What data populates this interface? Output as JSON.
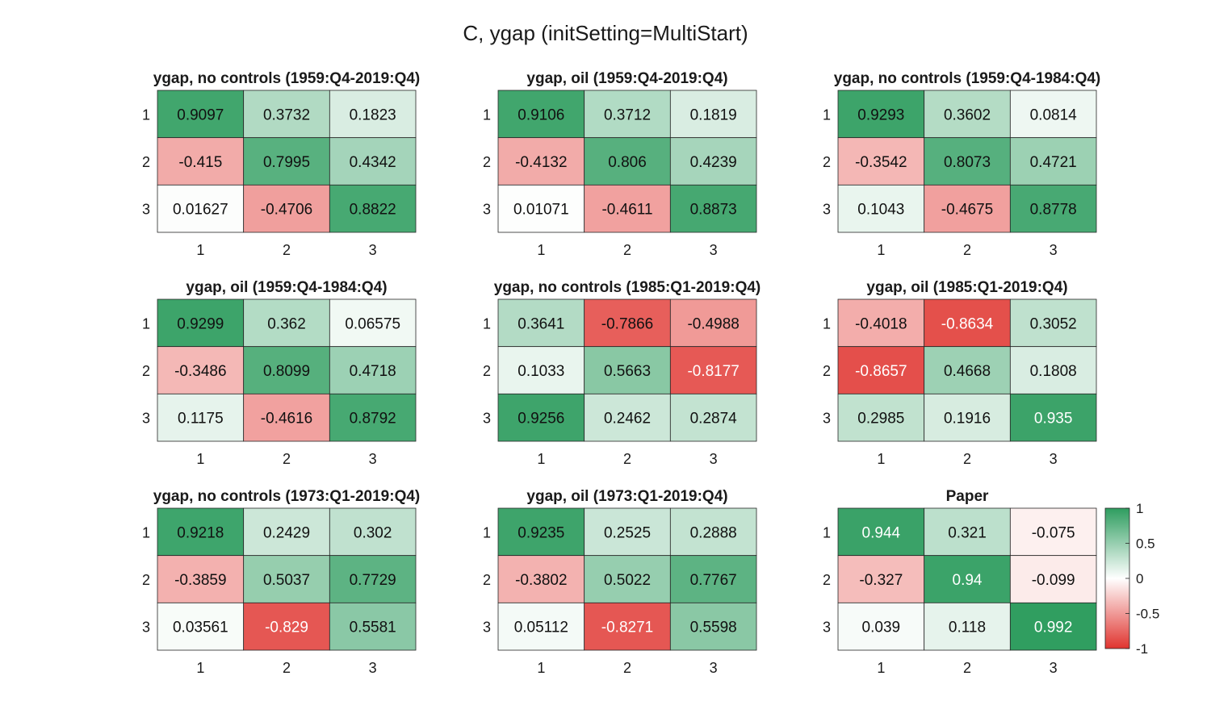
{
  "title": "C, ygap (initSetting=MultiStart)",
  "colors": {
    "positive": "#2e9d5f",
    "negative": "#e0342f",
    "neutral": "#ffffff",
    "cell_border": "#262626",
    "text_dark": "#111111",
    "text_light": "#ffffff"
  },
  "colorbar": {
    "ticks": [
      "1",
      "0.5",
      "0",
      "-0.5",
      "-1"
    ],
    "tick_values": [
      1,
      0.5,
      0,
      -0.5,
      -1
    ],
    "range": [
      -1,
      1
    ]
  },
  "chart_data": [
    {
      "type": "heatmap",
      "title": "ygap, no controls (1959:Q4-2019:Q4)",
      "row_labels": [
        "1",
        "2",
        "3"
      ],
      "col_labels": [
        "1",
        "2",
        "3"
      ],
      "values": [
        [
          0.9097,
          0.3732,
          0.1823
        ],
        [
          -0.415,
          0.7995,
          0.4342
        ],
        [
          0.01627,
          -0.4706,
          0.8822
        ]
      ],
      "labels": [
        [
          "0.9097",
          "0.3732",
          "0.1823"
        ],
        [
          "-0.415",
          "0.7995",
          "0.4342"
        ],
        [
          "0.01627",
          "-0.4706",
          "0.8822"
        ]
      ],
      "clim": [
        -1,
        1
      ]
    },
    {
      "type": "heatmap",
      "title": "ygap, oil (1959:Q4-2019:Q4)",
      "row_labels": [
        "1",
        "2",
        "3"
      ],
      "col_labels": [
        "1",
        "2",
        "3"
      ],
      "values": [
        [
          0.9106,
          0.3712,
          0.1819
        ],
        [
          -0.4132,
          0.806,
          0.4239
        ],
        [
          0.01071,
          -0.4611,
          0.8873
        ]
      ],
      "labels": [
        [
          "0.9106",
          "0.3712",
          "0.1819"
        ],
        [
          "-0.4132",
          "0.806",
          "0.4239"
        ],
        [
          "0.01071",
          "-0.4611",
          "0.8873"
        ]
      ],
      "clim": [
        -1,
        1
      ]
    },
    {
      "type": "heatmap",
      "title": "ygap, no controls (1959:Q4-1984:Q4)",
      "row_labels": [
        "1",
        "2",
        "3"
      ],
      "col_labels": [
        "1",
        "2",
        "3"
      ],
      "values": [
        [
          0.9293,
          0.3602,
          0.0814
        ],
        [
          -0.3542,
          0.8073,
          0.4721
        ],
        [
          0.1043,
          -0.4675,
          0.8778
        ]
      ],
      "labels": [
        [
          "0.9293",
          "0.3602",
          "0.0814"
        ],
        [
          "-0.3542",
          "0.8073",
          "0.4721"
        ],
        [
          "0.1043",
          "-0.4675",
          "0.8778"
        ]
      ],
      "clim": [
        -1,
        1
      ]
    },
    {
      "type": "heatmap",
      "title": "ygap, oil (1959:Q4-1984:Q4)",
      "row_labels": [
        "1",
        "2",
        "3"
      ],
      "col_labels": [
        "1",
        "2",
        "3"
      ],
      "values": [
        [
          0.9299,
          0.362,
          0.06575
        ],
        [
          -0.3486,
          0.8099,
          0.4718
        ],
        [
          0.1175,
          -0.4616,
          0.8792
        ]
      ],
      "labels": [
        [
          "0.9299",
          "0.362",
          "0.06575"
        ],
        [
          "-0.3486",
          "0.8099",
          "0.4718"
        ],
        [
          "0.1175",
          "-0.4616",
          "0.8792"
        ]
      ],
      "clim": [
        -1,
        1
      ]
    },
    {
      "type": "heatmap",
      "title": "ygap, no controls (1985:Q1-2019:Q4)",
      "row_labels": [
        "1",
        "2",
        "3"
      ],
      "col_labels": [
        "1",
        "2",
        "3"
      ],
      "values": [
        [
          0.3641,
          -0.7866,
          -0.4988
        ],
        [
          0.1033,
          0.5663,
          -0.8177
        ],
        [
          0.9256,
          0.2462,
          0.2874
        ]
      ],
      "labels": [
        [
          "0.3641",
          "-0.7866",
          "-0.4988"
        ],
        [
          "0.1033",
          "0.5663",
          "-0.8177"
        ],
        [
          "0.9256",
          "0.2462",
          "0.2874"
        ]
      ],
      "clim": [
        -1,
        1
      ]
    },
    {
      "type": "heatmap",
      "title": "ygap, oil (1985:Q1-2019:Q4)",
      "row_labels": [
        "1",
        "2",
        "3"
      ],
      "col_labels": [
        "1",
        "2",
        "3"
      ],
      "values": [
        [
          -0.4018,
          -0.8634,
          0.3052
        ],
        [
          -0.8657,
          0.4668,
          0.1808
        ],
        [
          0.2985,
          0.1916,
          0.935
        ]
      ],
      "labels": [
        [
          "-0.4018",
          "-0.8634",
          "0.3052"
        ],
        [
          "-0.8657",
          "0.4668",
          "0.1808"
        ],
        [
          "0.2985",
          "0.1916",
          "0.935"
        ]
      ],
      "clim": [
        -1,
        1
      ]
    },
    {
      "type": "heatmap",
      "title": "ygap, no controls (1973:Q1-2019:Q4)",
      "row_labels": [
        "1",
        "2",
        "3"
      ],
      "col_labels": [
        "1",
        "2",
        "3"
      ],
      "values": [
        [
          0.9218,
          0.2429,
          0.302
        ],
        [
          -0.3859,
          0.5037,
          0.7729
        ],
        [
          0.03561,
          -0.829,
          0.5581
        ]
      ],
      "labels": [
        [
          "0.9218",
          "0.2429",
          "0.302"
        ],
        [
          "-0.3859",
          "0.5037",
          "0.7729"
        ],
        [
          "0.03561",
          "-0.829",
          "0.5581"
        ]
      ],
      "clim": [
        -1,
        1
      ]
    },
    {
      "type": "heatmap",
      "title": "ygap, oil (1973:Q1-2019:Q4)",
      "row_labels": [
        "1",
        "2",
        "3"
      ],
      "col_labels": [
        "1",
        "2",
        "3"
      ],
      "values": [
        [
          0.9235,
          0.2525,
          0.2888
        ],
        [
          -0.3802,
          0.5022,
          0.7767
        ],
        [
          0.05112,
          -0.8271,
          0.5598
        ]
      ],
      "labels": [
        [
          "0.9235",
          "0.2525",
          "0.2888"
        ],
        [
          "-0.3802",
          "0.5022",
          "0.7767"
        ],
        [
          "0.05112",
          "-0.8271",
          "0.5598"
        ]
      ],
      "clim": [
        -1,
        1
      ]
    },
    {
      "type": "heatmap",
      "title": "Paper",
      "row_labels": [
        "1",
        "2",
        "3"
      ],
      "col_labels": [
        "1",
        "2",
        "3"
      ],
      "values": [
        [
          0.944,
          0.321,
          -0.075
        ],
        [
          -0.327,
          0.94,
          -0.099
        ],
        [
          0.039,
          0.118,
          0.992
        ]
      ],
      "labels": [
        [
          "0.944",
          "0.321",
          "-0.075"
        ],
        [
          "-0.327",
          "0.94",
          "-0.099"
        ],
        [
          "0.039",
          "0.118",
          "0.992"
        ]
      ],
      "clim": [
        -1,
        1
      ]
    }
  ]
}
